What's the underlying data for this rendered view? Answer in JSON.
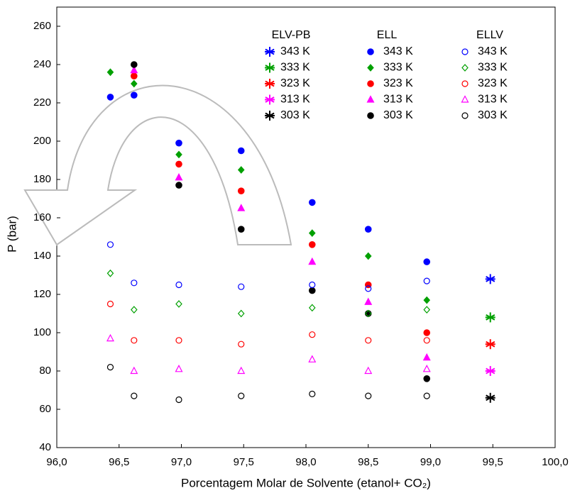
{
  "chart_data": {
    "type": "scatter",
    "xlabel": "Porcentagem Molar de Solvente (etanol+ CO₂)",
    "ylabel": "P (bar)",
    "xlim": [
      96,
      100
    ],
    "xticks": [
      {
        "value": 96,
        "label": "96,0"
      },
      {
        "value": 96.5,
        "label": "96,5"
      },
      {
        "value": 97,
        "label": "97,0"
      },
      {
        "value": 97.5,
        "label": "97,5"
      },
      {
        "value": 98,
        "label": "98,0"
      },
      {
        "value": 98.5,
        "label": "98,5"
      },
      {
        "value": 99,
        "label": "99,0"
      },
      {
        "value": 99.5,
        "label": "99,5"
      },
      {
        "value": 100,
        "label": "100,0"
      }
    ],
    "ylim": [
      40,
      270
    ],
    "yticks": [
      40,
      60,
      80,
      100,
      120,
      140,
      160,
      180,
      200,
      220,
      240,
      260
    ],
    "groups": [
      {
        "name": "ELV-PB",
        "marker": "asterisk",
        "series": [
          {
            "name": "343 K",
            "color": "#0000ff",
            "x": [
              99.48
            ],
            "values": [
              128
            ]
          },
          {
            "name": "333 K",
            "color": "#00a000",
            "x": [
              99.48
            ],
            "values": [
              108
            ]
          },
          {
            "name": "323 K",
            "color": "#ff0000",
            "x": [
              99.48
            ],
            "values": [
              94
            ]
          },
          {
            "name": "313 K",
            "color": "#ff00ff",
            "x": [
              99.48
            ],
            "values": [
              80
            ]
          },
          {
            "name": "303 K",
            "color": "#000000",
            "x": [
              99.48
            ],
            "values": [
              66
            ]
          }
        ]
      },
      {
        "name": "ELL",
        "marker": "filled",
        "series": [
          {
            "name": "343 K",
            "color": "#0000ff",
            "shape": "circle",
            "x": [
              96.43,
              96.62,
              96.98,
              97.48,
              98.05,
              98.5,
              98.97
            ],
            "values": [
              223,
              224,
              199,
              195,
              168,
              154,
              137
            ]
          },
          {
            "name": "333 K",
            "color": "#00a000",
            "shape": "diamond",
            "x": [
              96.43,
              96.62,
              96.98,
              97.48,
              98.05,
              98.5,
              98.97
            ],
            "values": [
              236,
              230,
              193,
              185,
              152,
              140,
              117
            ]
          },
          {
            "name": "323 K",
            "color": "#ff0000",
            "shape": "circle",
            "x": [
              96.62,
              96.98,
              97.48,
              98.05,
              98.5,
              98.97
            ],
            "values": [
              234,
              188,
              174,
              146,
              125,
              100
            ]
          },
          {
            "name": "313 K",
            "color": "#ff00ff",
            "shape": "triangle",
            "x": [
              96.62,
              96.98,
              97.48,
              98.05,
              98.5,
              98.97
            ],
            "values": [
              237,
              181,
              165,
              137,
              116,
              87
            ]
          },
          {
            "name": "303 K",
            "color": "#000000",
            "shape": "circle",
            "x": [
              96.62,
              96.98,
              97.48,
              98.05,
              98.5,
              98.97
            ],
            "values": [
              240,
              177,
              154,
              122,
              110,
              76
            ]
          }
        ]
      },
      {
        "name": "ELLV",
        "marker": "open",
        "series": [
          {
            "name": "343 K",
            "color": "#0000ff",
            "shape": "circle",
            "x": [
              96.43,
              96.62,
              96.98,
              97.48,
              98.05,
              98.5,
              98.97
            ],
            "values": [
              146,
              126,
              125,
              124,
              125,
              123,
              127
            ]
          },
          {
            "name": "333 K",
            "color": "#00a000",
            "shape": "diamond",
            "x": [
              96.43,
              96.62,
              96.98,
              97.48,
              98.05,
              98.5,
              98.97
            ],
            "values": [
              131,
              112,
              115,
              110,
              113,
              110,
              112
            ]
          },
          {
            "name": "323 K",
            "color": "#ff0000",
            "shape": "circle",
            "x": [
              96.43,
              96.62,
              96.98,
              97.48,
              98.05,
              98.5,
              98.97
            ],
            "values": [
              115,
              96,
              96,
              94,
              99,
              96,
              96
            ]
          },
          {
            "name": "313 K",
            "color": "#ff00ff",
            "shape": "triangle",
            "x": [
              96.43,
              96.62,
              96.98,
              97.48,
              98.05,
              98.5,
              98.97
            ],
            "values": [
              97,
              80,
              81,
              80,
              86,
              80,
              81
            ]
          },
          {
            "name": "303 K",
            "color": "#000000",
            "shape": "circle",
            "x": [
              96.43,
              96.62,
              96.98,
              97.48,
              98.05,
              98.5,
              98.97
            ],
            "values": [
              82,
              67,
              65,
              67,
              68,
              67,
              67
            ]
          }
        ]
      }
    ]
  }
}
